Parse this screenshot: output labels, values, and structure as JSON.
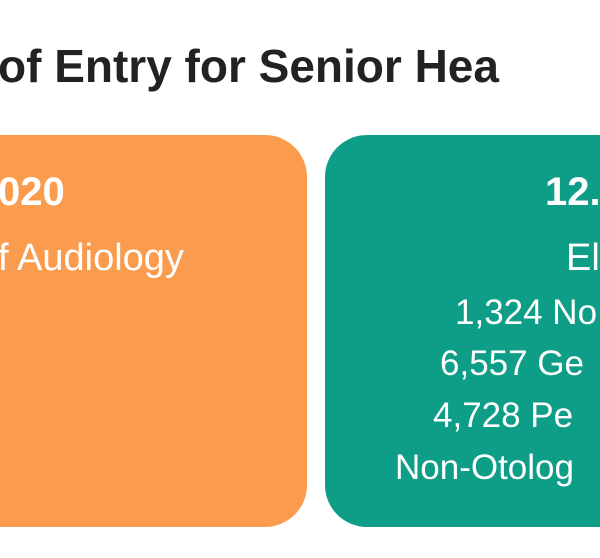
{
  "header": {
    "title": "of Entry for Senior Hea"
  },
  "cards": [
    {
      "headline": "020",
      "lines": [
        "f Audiology"
      ]
    },
    {
      "headline": "12.",
      "lines": [
        "El",
        "1,324 No",
        "6,557 Ge",
        "4,728 Pe",
        "Non-Otolog"
      ]
    }
  ]
}
